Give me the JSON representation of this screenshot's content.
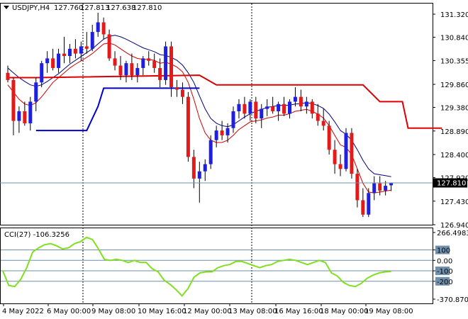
{
  "header": {
    "symbol": "USDJPY,H4",
    "open": "127.760",
    "high": "127.813",
    "low": "127.638",
    "close": "127.810"
  },
  "colors": {
    "bull": "#1f1fe0",
    "bear": "#e41a1a",
    "ma_fast": "#cc0000",
    "ma_slow": "#000080",
    "stop_up": "#0000cc",
    "stop_down": "#dd0000",
    "cci": "#80e020",
    "level": "#6f8faa",
    "price_tag": "#000000"
  },
  "chart_data": [
    {
      "type": "candlestick",
      "ylim": [
        126.94,
        131.32
      ],
      "y_ticks": [
        "131.320",
        "130.840",
        "130.355",
        "129.860",
        "129.380",
        "128.890",
        "128.400",
        "127.920",
        "127.430",
        "126.940"
      ],
      "x_labels": [
        "4 May 2022",
        "6 May 00:00",
        "9 May 08:00",
        "10 May 16:00",
        "12 May 00:00",
        "13 May 08:00",
        "16 May 16:00",
        "18 May 00:00",
        "19 May 08:00"
      ],
      "current_price": "127.810",
      "candles": [
        [
          130.1,
          130.25,
          129.9,
          129.95
        ],
        [
          129.95,
          130.0,
          128.8,
          129.1
        ],
        [
          129.1,
          129.4,
          128.85,
          129.3
        ],
        [
          129.3,
          129.5,
          129.0,
          129.05
        ],
        [
          129.05,
          129.6,
          128.9,
          129.5
        ],
        [
          129.5,
          130.0,
          129.3,
          129.9
        ],
        [
          129.9,
          130.35,
          129.8,
          130.3
        ],
        [
          130.3,
          130.55,
          130.1,
          130.4
        ],
        [
          130.4,
          130.6,
          130.15,
          130.2
        ],
        [
          130.2,
          130.6,
          130.1,
          130.5
        ],
        [
          130.5,
          130.85,
          130.3,
          130.45
        ],
        [
          130.45,
          130.7,
          130.3,
          130.6
        ],
        [
          130.6,
          130.8,
          130.4,
          130.5
        ],
        [
          130.5,
          130.75,
          130.35,
          130.65
        ],
        [
          130.65,
          130.95,
          130.5,
          130.6
        ],
        [
          130.6,
          131.1,
          130.55,
          130.95
        ],
        [
          130.95,
          131.35,
          130.85,
          131.15
        ],
        [
          131.15,
          131.25,
          130.8,
          130.9
        ],
        [
          130.9,
          131.0,
          130.35,
          130.4
        ],
        [
          130.4,
          130.55,
          130.15,
          130.25
        ],
        [
          130.25,
          130.45,
          129.95,
          130.05
        ],
        [
          130.05,
          130.35,
          129.9,
          130.3
        ],
        [
          130.3,
          130.5,
          129.95,
          130.05
        ],
        [
          130.05,
          130.3,
          129.9,
          130.2
        ],
        [
          130.2,
          130.45,
          130.05,
          130.4
        ],
        [
          130.4,
          130.55,
          130.25,
          130.35
        ],
        [
          130.35,
          130.5,
          130.1,
          130.2
        ],
        [
          130.2,
          130.4,
          129.8,
          129.95
        ],
        [
          129.95,
          130.75,
          129.85,
          130.65
        ],
        [
          130.65,
          130.75,
          129.6,
          129.8
        ],
        [
          129.8,
          129.95,
          129.6,
          129.75
        ],
        [
          129.75,
          129.9,
          129.45,
          129.6
        ],
        [
          129.6,
          129.7,
          128.25,
          128.35
        ],
        [
          128.35,
          128.5,
          127.7,
          127.9
        ],
        [
          127.9,
          128.25,
          127.4,
          128.05
        ],
        [
          128.05,
          128.3,
          127.85,
          128.2
        ],
        [
          128.2,
          128.8,
          128.1,
          128.7
        ],
        [
          128.7,
          129.0,
          128.55,
          128.9
        ],
        [
          128.9,
          129.1,
          128.7,
          128.8
        ],
        [
          128.8,
          129.05,
          128.65,
          128.95
        ],
        [
          128.95,
          129.4,
          128.85,
          129.3
        ],
        [
          129.3,
          129.55,
          129.15,
          129.45
        ],
        [
          129.45,
          129.6,
          129.15,
          129.25
        ],
        [
          129.25,
          129.55,
          129.1,
          129.5
        ],
        [
          129.5,
          129.6,
          129.05,
          129.15
        ],
        [
          129.15,
          129.45,
          128.95,
          129.35
        ],
        [
          129.35,
          129.55,
          129.2,
          129.4
        ],
        [
          129.4,
          129.6,
          129.25,
          129.3
        ],
        [
          129.3,
          129.5,
          129.1,
          129.45
        ],
        [
          129.45,
          129.6,
          129.2,
          129.25
        ],
        [
          129.25,
          129.55,
          129.15,
          129.5
        ],
        [
          129.5,
          129.8,
          129.4,
          129.6
        ],
        [
          129.6,
          129.75,
          129.3,
          129.4
        ],
        [
          129.4,
          129.6,
          129.25,
          129.5
        ],
        [
          129.5,
          129.55,
          129.15,
          129.25
        ],
        [
          129.25,
          129.45,
          129.0,
          129.1
        ],
        [
          129.1,
          129.35,
          128.9,
          129.0
        ],
        [
          129.0,
          129.1,
          128.4,
          128.5
        ],
        [
          128.5,
          128.7,
          128.0,
          128.2
        ],
        [
          128.2,
          128.4,
          127.95,
          128.1
        ],
        [
          128.1,
          128.95,
          128.05,
          128.85
        ],
        [
          128.85,
          128.95,
          127.9,
          128.0
        ],
        [
          128.0,
          128.1,
          127.3,
          127.45
        ],
        [
          127.45,
          127.7,
          127.1,
          127.15
        ],
        [
          127.15,
          127.7,
          127.1,
          127.6
        ],
        [
          127.6,
          127.95,
          127.45,
          127.8
        ],
        [
          127.8,
          127.95,
          127.55,
          127.65
        ],
        [
          127.65,
          127.85,
          127.55,
          127.75
        ],
        [
          127.76,
          127.81,
          127.64,
          127.81
        ]
      ],
      "ma_fast": [
        129.85,
        129.7,
        129.55,
        129.45,
        129.42,
        129.48,
        129.6,
        129.75,
        129.9,
        130.0,
        130.1,
        130.2,
        130.28,
        130.35,
        130.42,
        130.5,
        130.6,
        130.7,
        130.72,
        130.68,
        130.6,
        130.52,
        130.45,
        130.4,
        130.38,
        130.38,
        130.36,
        130.3,
        130.32,
        130.28,
        130.22,
        130.12,
        129.9,
        129.55,
        129.15,
        128.85,
        128.7,
        128.65,
        128.65,
        128.7,
        128.8,
        128.92,
        129.0,
        129.08,
        129.1,
        129.12,
        129.16,
        129.18,
        129.22,
        129.22,
        129.25,
        129.3,
        129.32,
        129.34,
        129.3,
        129.24,
        129.16,
        129.0,
        128.8,
        128.6,
        128.55,
        128.4,
        128.1,
        127.8,
        127.62,
        127.6,
        127.62,
        127.64,
        127.66
      ],
      "ma_slow": [
        130.2,
        130.1,
        130.0,
        129.92,
        129.85,
        129.82,
        129.85,
        129.92,
        130.0,
        130.08,
        130.18,
        130.28,
        130.36,
        130.44,
        130.52,
        130.6,
        130.7,
        130.8,
        130.86,
        130.88,
        130.85,
        130.8,
        130.74,
        130.68,
        130.62,
        130.58,
        130.54,
        130.48,
        130.46,
        130.42,
        130.36,
        130.26,
        130.1,
        129.9,
        129.62,
        129.35,
        129.15,
        129.05,
        129.0,
        128.98,
        129.02,
        129.1,
        129.18,
        129.25,
        129.3,
        129.34,
        129.38,
        129.4,
        129.42,
        129.42,
        129.43,
        129.45,
        129.46,
        129.48,
        129.46,
        129.42,
        129.36,
        129.24,
        129.08,
        128.9,
        128.82,
        128.7,
        128.5,
        128.28,
        128.1,
        128.0,
        127.98,
        127.96,
        127.94
      ],
      "stop_up": [
        [
          5,
          128.9
        ],
        [
          14,
          128.9
        ],
        [
          16,
          129.4
        ],
        [
          17,
          129.78
        ],
        [
          34,
          129.78
        ]
      ],
      "stop_down": [
        [
          0,
          130.0
        ],
        [
          5,
          130.0
        ],
        [
          34,
          130.05
        ],
        [
          37,
          129.85
        ],
        [
          63,
          129.85
        ],
        [
          66,
          129.5
        ],
        [
          70,
          129.5
        ],
        [
          71,
          128.95
        ],
        [
          77,
          128.95
        ]
      ]
    },
    {
      "type": "line",
      "title": "CCI(27) -106.3256",
      "ylim": [
        -370.8706,
        266.4983
      ],
      "y_ticks": [
        "266.4983",
        "100",
        "0.00",
        "-100",
        "-200",
        "-370.8706"
      ],
      "levels": [
        100,
        0,
        -100,
        -200
      ],
      "values": [
        -100,
        -240,
        -250,
        -180,
        -70,
        80,
        120,
        150,
        160,
        140,
        110,
        120,
        160,
        180,
        220,
        200,
        110,
        10,
        0,
        10,
        0,
        -20,
        0,
        -20,
        -20,
        -80,
        -110,
        -190,
        -230,
        -280,
        -340,
        -270,
        -160,
        -120,
        -110,
        -110,
        -70,
        -50,
        -40,
        -10,
        -10,
        -30,
        -50,
        -70,
        -50,
        -40,
        -10,
        0,
        10,
        0,
        -20,
        -40,
        -20,
        0,
        -20,
        -120,
        -150,
        -210,
        -240,
        -250,
        -220,
        -170,
        -140,
        -120,
        -110,
        -106.3256
      ]
    }
  ]
}
